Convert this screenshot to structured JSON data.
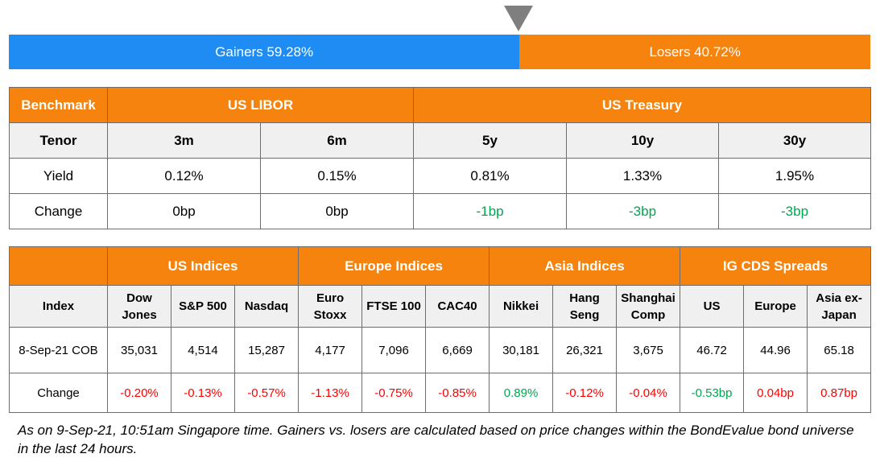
{
  "breadth": {
    "gainers_label": "Gainers 59.28%",
    "losers_label": "Losers 40.72%",
    "gainers_pct": 59.28,
    "losers_pct": 40.72,
    "colors": {
      "gainers": "#1e8cf2",
      "losers": "#f5830d",
      "marker": "#7f7f7f"
    }
  },
  "rates": {
    "benchmark_label": "Benchmark",
    "libor_label": "US LIBOR",
    "treasury_label": "US Treasury",
    "tenor_label": "Tenor",
    "tenors": [
      "3m",
      "6m",
      "5y",
      "10y",
      "30y"
    ],
    "yield_label": "Yield",
    "yields": [
      "0.12%",
      "0.15%",
      "0.81%",
      "1.33%",
      "1.95%"
    ],
    "change_label": "Change",
    "changes": [
      "0bp",
      "0bp",
      "-1bp",
      "-3bp",
      "-3bp"
    ]
  },
  "indices": {
    "index_label": "Index",
    "groups": [
      "US Indices",
      "Europe Indices",
      "Asia Indices",
      "IG CDS Spreads"
    ],
    "names": [
      [
        "Dow",
        "Jones"
      ],
      [
        "S&P 500"
      ],
      [
        "Nasdaq"
      ],
      [
        "Euro",
        "Stoxx"
      ],
      [
        "FTSE 100"
      ],
      [
        "CAC40"
      ],
      [
        "Nikkei"
      ],
      [
        "Hang",
        "Seng"
      ],
      [
        "Shanghai",
        "Comp"
      ],
      [
        "US"
      ],
      [
        "Europe"
      ],
      [
        "Asia ex-",
        "Japan"
      ]
    ],
    "value_label": "8-Sep-21 COB",
    "values": [
      "35,031",
      "4,514",
      "15,287",
      "4,177",
      "7,096",
      "6,669",
      "30,181",
      "26,321",
      "3,675",
      "46.72",
      "44.96",
      "65.18"
    ],
    "change_label": "Change",
    "changes": [
      "-0.20%",
      "-0.13%",
      "-0.57%",
      "-1.13%",
      "-0.75%",
      "-0.85%",
      "0.89%",
      "-0.12%",
      "-0.04%",
      "-0.53bp",
      "0.04bp",
      "0.87bp"
    ],
    "change_colors": [
      "neg",
      "neg",
      "neg",
      "neg",
      "neg",
      "neg",
      "pos",
      "neg",
      "neg",
      "pos",
      "neg",
      "neg"
    ]
  },
  "note": "As on 9-Sep-21, 10:51am Singapore time. Gainers vs. losers are calculated based on price changes within the BondEvalue bond universe in the last 24 hours."
}
